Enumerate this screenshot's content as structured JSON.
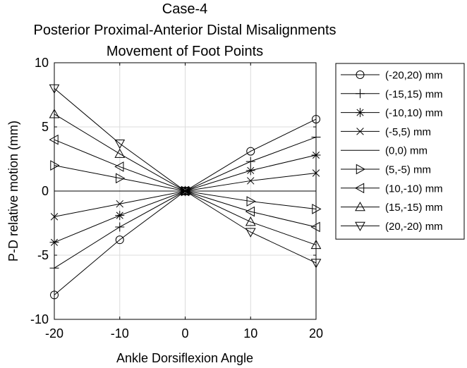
{
  "chart_data": {
    "type": "line",
    "title": [
      "Case-4",
      "Posterior Proximal-Anterior Distal Misalignments",
      "Movement of Foot Points"
    ],
    "xlabel": "Ankle Dorsiflexion Angle",
    "ylabel": "P-D relative motion (mm)",
    "xlim": [
      -20,
      20
    ],
    "ylim": [
      -10,
      10
    ],
    "xticks": [
      -20,
      -10,
      0,
      10,
      20
    ],
    "yticks": [
      -10,
      -5,
      0,
      5,
      10
    ],
    "grid": true,
    "legend_position": "outside-right",
    "x": [
      -20,
      -10,
      0,
      10,
      20
    ],
    "series": [
      {
        "name": "(-20,20) mm",
        "marker": "circle",
        "values": [
          -8.1,
          -3.8,
          0,
          3.1,
          5.6
        ]
      },
      {
        "name": "(-15,15) mm",
        "marker": "plus",
        "values": [
          -6.0,
          -2.8,
          0,
          2.3,
          4.2
        ]
      },
      {
        "name": "(-10,10) mm",
        "marker": "asterisk",
        "values": [
          -4.0,
          -1.9,
          0,
          1.6,
          2.8
        ]
      },
      {
        "name": "(-5,5) mm",
        "marker": "x",
        "values": [
          -2.0,
          -1.0,
          0,
          0.8,
          1.4
        ]
      },
      {
        "name": "(0,0) mm",
        "marker": "none",
        "values": [
          0,
          0,
          0,
          0,
          0
        ]
      },
      {
        "name": "(5,-5) mm",
        "marker": "triangle-right",
        "values": [
          2.0,
          1.0,
          0,
          -0.8,
          -1.4
        ]
      },
      {
        "name": "(10,-10) mm",
        "marker": "triangle-left",
        "values": [
          4.0,
          1.9,
          0,
          -1.6,
          -2.8
        ]
      },
      {
        "name": "(15,-15) mm",
        "marker": "triangle-up",
        "values": [
          6.0,
          2.9,
          0,
          -2.4,
          -4.2
        ]
      },
      {
        "name": "(20,-20) mm",
        "marker": "triangle-down",
        "values": [
          8.0,
          3.7,
          0,
          -3.2,
          -5.6
        ]
      }
    ],
    "colors": {
      "line": "#000000",
      "grid": "#dcdcdc",
      "background": "#ffffff"
    }
  }
}
